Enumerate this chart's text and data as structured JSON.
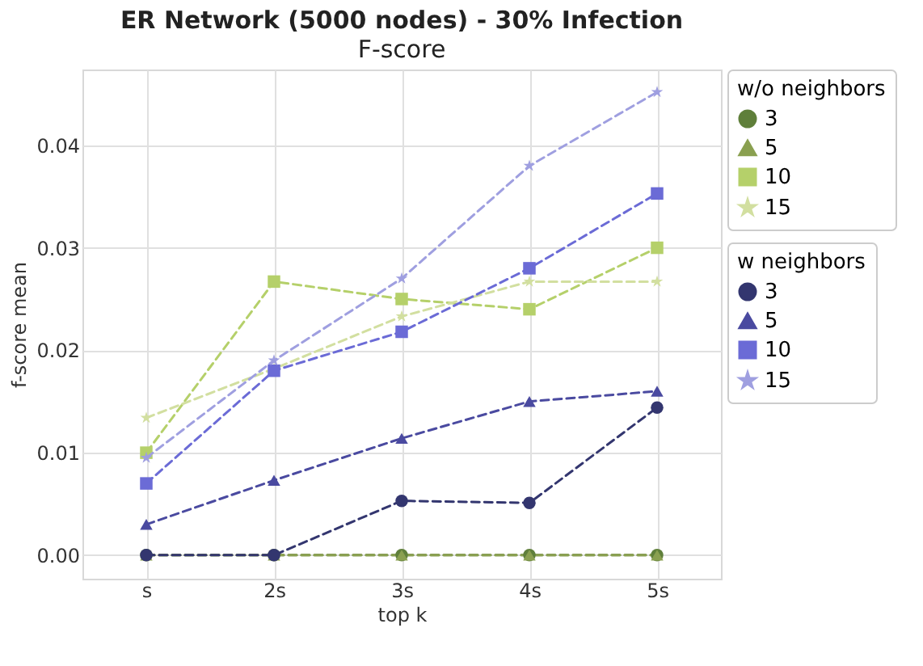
{
  "chart_data": {
    "type": "line",
    "title": "ER Network (5000 nodes) - 30% Infection",
    "subtitle": "F-score",
    "xlabel": "top k",
    "ylabel": "f-score mean",
    "categories": [
      "s",
      "2s",
      "3s",
      "4s",
      "5s"
    ],
    "ylim": [
      -0.0023,
      0.0474
    ],
    "yticks": [
      {
        "value": 0,
        "label": "0.00"
      },
      0.01,
      0.02,
      0.03,
      0.04
    ],
    "grid": true,
    "legend": "right",
    "line_style": "dashed",
    "legend_title": [
      "w/o neighbors",
      "w neighbors"
    ],
    "series": [
      {
        "name": "3",
        "marker": "circle",
        "color": "#5f7f3a",
        "values": [
          0,
          0,
          0,
          0,
          0
        ]
      },
      {
        "name": "5",
        "marker": "triangle",
        "color": "#8aa050",
        "values": [
          0,
          0,
          0,
          0,
          0
        ]
      },
      {
        "name": "10",
        "marker": "square",
        "color": "#b5d06a",
        "values": [
          0.01,
          0.0267,
          0.025,
          0.024,
          0.03
        ]
      },
      {
        "name": "15",
        "marker": "star",
        "color": "#d2dfa0",
        "values": [
          0.0134,
          0.0182,
          0.0233,
          0.0267,
          0.0267
        ]
      },
      {
        "name": "3",
        "marker": "circle",
        "color": "#33366f",
        "values": [
          0,
          0,
          0.0053,
          0.0051,
          0.0144
        ]
      },
      {
        "name": "5",
        "marker": "triangle",
        "color": "#4a4aa0",
        "values": [
          0.003,
          0.0073,
          0.0114,
          0.015,
          0.016
        ]
      },
      {
        "name": "10",
        "marker": "square",
        "color": "#6b6bd6",
        "values": [
          0.007,
          0.018,
          0.0218,
          0.028,
          0.0353
        ]
      },
      {
        "name": "15",
        "marker": "star",
        "color": "#9f9fe0",
        "values": [
          0.0095,
          0.019,
          0.027,
          0.038,
          0.0452
        ]
      }
    ]
  }
}
